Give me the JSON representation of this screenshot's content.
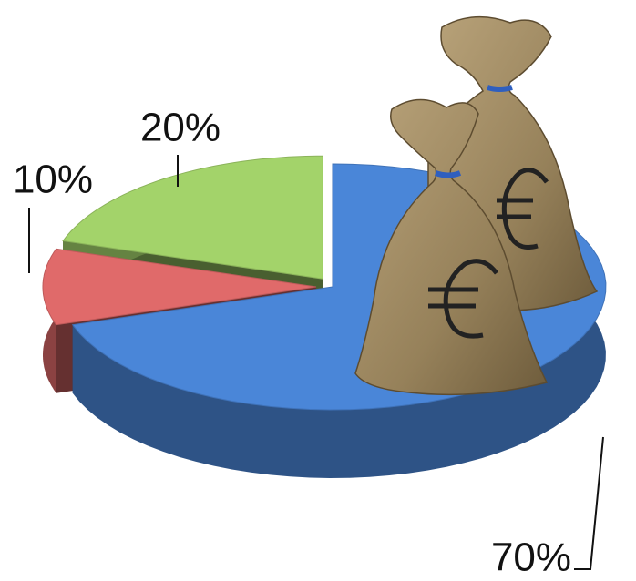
{
  "chart_data": {
    "type": "pie",
    "values": [
      70,
      10,
      20
    ],
    "value_labels": [
      "70%",
      "10%",
      "20%"
    ],
    "colors": [
      "#4a86d8",
      "#e06a6a",
      "#a3d36a"
    ]
  }
}
